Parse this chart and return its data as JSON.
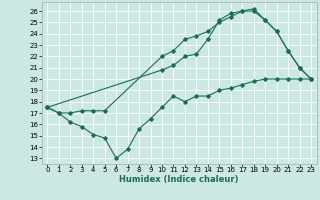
{
  "xlabel": "Humidex (Indice chaleur)",
  "bg_color": "#cce8e4",
  "line_color": "#1a6b5a",
  "grid_color": "#ffffff",
  "xlim": [
    -0.5,
    23.5
  ],
  "ylim": [
    12.5,
    26.8
  ],
  "yticks": [
    13,
    14,
    15,
    16,
    17,
    18,
    19,
    20,
    21,
    22,
    23,
    24,
    25,
    26
  ],
  "xticks": [
    0,
    1,
    2,
    3,
    4,
    5,
    6,
    7,
    8,
    9,
    10,
    11,
    12,
    13,
    14,
    15,
    16,
    17,
    18,
    19,
    20,
    21,
    22,
    23
  ],
  "line1_x": [
    0,
    1,
    2,
    3,
    4,
    5,
    6,
    7,
    8,
    9,
    10,
    11,
    12,
    13,
    14,
    15,
    16,
    17,
    18,
    19,
    20,
    21,
    22,
    23
  ],
  "line1_y": [
    17.5,
    17.0,
    16.2,
    15.8,
    15.1,
    14.8,
    13.0,
    13.8,
    15.6,
    16.5,
    17.5,
    18.5,
    18.0,
    18.5,
    18.5,
    19.0,
    19.2,
    19.5,
    19.8,
    20.0,
    20.0,
    20.0,
    20.0,
    20.0
  ],
  "line2_x": [
    0,
    1,
    2,
    3,
    4,
    5,
    10,
    11,
    12,
    13,
    14,
    15,
    16,
    17,
    18,
    19,
    20,
    21,
    22,
    23
  ],
  "line2_y": [
    17.5,
    17.0,
    17.0,
    17.2,
    17.2,
    17.2,
    22.0,
    22.5,
    23.5,
    23.8,
    24.2,
    25.0,
    25.5,
    26.0,
    26.0,
    25.2,
    24.2,
    22.5,
    21.0,
    20.0
  ],
  "line3_x": [
    0,
    10,
    11,
    12,
    13,
    14,
    15,
    16,
    17,
    18,
    19,
    20,
    21,
    22,
    23
  ],
  "line3_y": [
    17.5,
    20.8,
    21.2,
    22.0,
    22.2,
    23.5,
    25.2,
    25.8,
    26.0,
    26.2,
    25.2,
    24.2,
    22.5,
    21.0,
    20.0
  ],
  "tick_fontsize": 5.0,
  "xlabel_fontsize": 6.0,
  "lw": 0.8,
  "ms": 1.8
}
